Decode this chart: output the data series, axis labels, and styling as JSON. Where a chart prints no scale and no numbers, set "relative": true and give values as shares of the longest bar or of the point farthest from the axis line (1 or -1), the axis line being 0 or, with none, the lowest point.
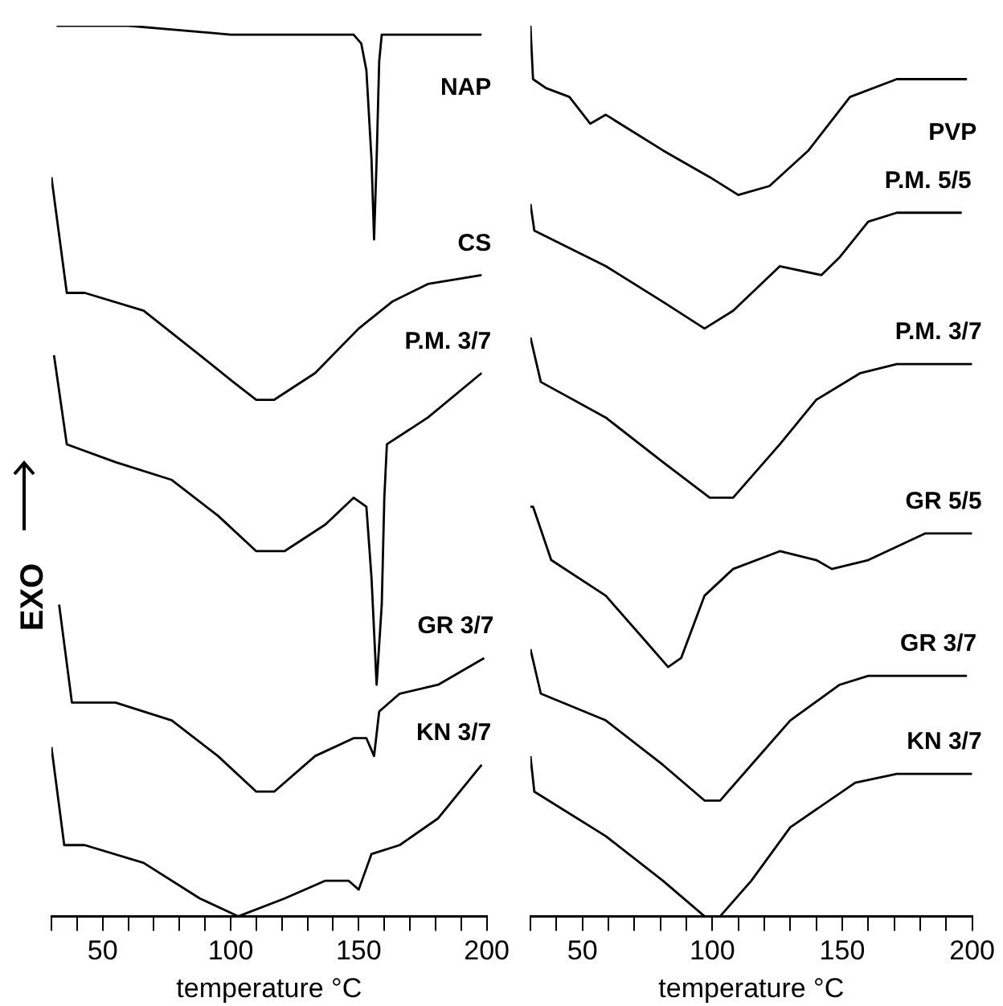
{
  "chart_data": [
    {
      "type": "line",
      "relative": true,
      "ylabel": "EXO",
      "xlabel": "temperature °C",
      "xlim": [
        30,
        200
      ],
      "xticks": [
        {
          "value": 30,
          "label": null
        },
        {
          "value": 40,
          "label": null
        },
        50,
        {
          "value": 60,
          "label": null
        },
        {
          "value": 70,
          "label": null
        },
        {
          "value": 80,
          "label": null
        },
        {
          "value": 90,
          "label": null
        },
        100,
        {
          "value": 110,
          "label": null
        },
        {
          "value": 120,
          "label": null
        },
        {
          "value": 130,
          "label": null
        },
        {
          "value": 140,
          "label": null
        },
        150,
        {
          "value": 160,
          "label": null
        },
        {
          "value": 170,
          "label": null
        },
        {
          "value": 180,
          "label": null
        },
        {
          "value": 190,
          "label": null
        },
        200
      ],
      "marker": "none",
      "line_style": "solid",
      "grid": false,
      "legend": false,
      "series": [
        {
          "name": "NAP",
          "color": "#000000",
          "x": [
            32,
            60,
            100,
            130,
            148,
            151,
            153,
            155,
            156,
            157,
            158,
            159,
            162,
            170,
            185,
            198
          ],
          "values": [
            1.0,
            1.0,
            0.99,
            0.99,
            0.99,
            0.98,
            0.95,
            0.85,
            0.76,
            0.85,
            0.96,
            0.99,
            0.99,
            0.99,
            0.99,
            0.99
          ]
        },
        {
          "name": "CS",
          "color": "#000000",
          "x": [
            30,
            36,
            43,
            66,
            88,
            101,
            110,
            117,
            133,
            150,
            163,
            177,
            198
          ],
          "values": [
            0.83,
            0.7,
            0.7,
            0.68,
            0.63,
            0.6,
            0.58,
            0.58,
            0.61,
            0.66,
            0.69,
            0.71,
            0.72
          ]
        },
        {
          "name": "P.M. 3/7",
          "color": "#000000",
          "x": [
            31,
            36,
            55,
            77,
            95,
            110,
            121,
            137,
            148,
            153,
            155,
            157,
            159,
            160,
            161,
            177,
            198
          ],
          "values": [
            0.63,
            0.53,
            0.51,
            0.49,
            0.45,
            0.41,
            0.41,
            0.44,
            0.47,
            0.46,
            0.38,
            0.26,
            0.35,
            0.47,
            0.53,
            0.56,
            0.61
          ]
        },
        {
          "name": "GR 3/7",
          "color": "#000000",
          "x": [
            33,
            38,
            41,
            55,
            77,
            95,
            110,
            117,
            133,
            148,
            153,
            156,
            158,
            166,
            181,
            199
          ],
          "values": [
            0.35,
            0.24,
            0.24,
            0.24,
            0.22,
            0.18,
            0.14,
            0.14,
            0.18,
            0.2,
            0.2,
            0.18,
            0.23,
            0.25,
            0.26,
            0.29
          ]
        },
        {
          "name": "KN 3/7",
          "color": "#000000",
          "x": [
            30,
            35,
            43,
            66,
            88,
            103,
            121,
            137,
            146,
            150,
            155,
            166,
            181,
            198
          ],
          "values": [
            0.19,
            0.08,
            0.08,
            0.06,
            0.02,
            0,
            0.02,
            0.04,
            0.04,
            0.03,
            0.07,
            0.08,
            0.11,
            0.17
          ]
        }
      ]
    },
    {
      "type": "line",
      "relative": true,
      "xlabel": "temperature °C",
      "xlim": [
        30,
        200
      ],
      "xticks": [
        {
          "value": 30,
          "label": null
        },
        {
          "value": 40,
          "label": null
        },
        50,
        {
          "value": 60,
          "label": null
        },
        {
          "value": 70,
          "label": null
        },
        {
          "value": 80,
          "label": null
        },
        {
          "value": 90,
          "label": null
        },
        100,
        {
          "value": 110,
          "label": null
        },
        {
          "value": 120,
          "label": null
        },
        {
          "value": 130,
          "label": null
        },
        {
          "value": 140,
          "label": null
        },
        150,
        {
          "value": 160,
          "label": null
        },
        {
          "value": 170,
          "label": null
        },
        {
          "value": 180,
          "label": null
        },
        {
          "value": 190,
          "label": null
        },
        200
      ],
      "marker": "none",
      "line_style": "solid",
      "grid": false,
      "legend": false,
      "series": [
        {
          "name": "PVP",
          "color": "#000000",
          "x": [
            30,
            31,
            36,
            45,
            53,
            59,
            81,
            99,
            110,
            122,
            137,
            153,
            171,
            198
          ],
          "values": [
            1.0,
            0.94,
            0.93,
            0.92,
            0.89,
            0.9,
            0.86,
            0.83,
            0.81,
            0.82,
            0.86,
            0.92,
            0.94,
            0.94
          ]
        },
        {
          "name": "P.M. 5/5",
          "color": "#000000",
          "x": [
            30,
            31.5,
            59,
            81,
            97,
            108,
            126,
            142,
            149,
            160,
            171,
            196
          ],
          "values": [
            0.8,
            0.77,
            0.73,
            0.69,
            0.66,
            0.68,
            0.73,
            0.72,
            0.74,
            0.78,
            0.79,
            0.79
          ]
        },
        {
          "name": "P.M. 3/7",
          "color": "#000000",
          "x": [
            30,
            34,
            59,
            81,
            99,
            108,
            126,
            140,
            157,
            171,
            200
          ],
          "values": [
            0.65,
            0.6,
            0.56,
            0.51,
            0.47,
            0.47,
            0.53,
            0.58,
            0.61,
            0.62,
            0.62
          ]
        },
        {
          "name": "GR 5/5",
          "color": "#000000",
          "x": [
            30,
            31,
            38,
            59,
            74,
            83,
            88,
            97,
            108,
            126,
            140,
            146,
            160,
            182,
            200
          ],
          "values": [
            0.46,
            0.46,
            0.4,
            0.36,
            0.31,
            0.28,
            0.29,
            0.36,
            0.39,
            0.41,
            0.4,
            0.39,
            0.4,
            0.43,
            0.43
          ]
        },
        {
          "name": "GR 3/7",
          "color": "#000000",
          "x": [
            30,
            34,
            59,
            81,
            97,
            103,
            115,
            130,
            149,
            160,
            198
          ],
          "values": [
            0.3,
            0.25,
            0.22,
            0.17,
            0.13,
            0.13,
            0.17,
            0.22,
            0.26,
            0.27,
            0.27
          ]
        },
        {
          "name": "KN 3/7",
          "color": "#000000",
          "x": [
            30,
            31.5,
            59,
            81,
            97,
            103,
            115,
            130,
            155,
            171,
            200
          ],
          "values": [
            0.18,
            0.14,
            0.09,
            0.04,
            0,
            0.0,
            0.04,
            0.1,
            0.15,
            0.16,
            0.16
          ]
        }
      ]
    }
  ]
}
